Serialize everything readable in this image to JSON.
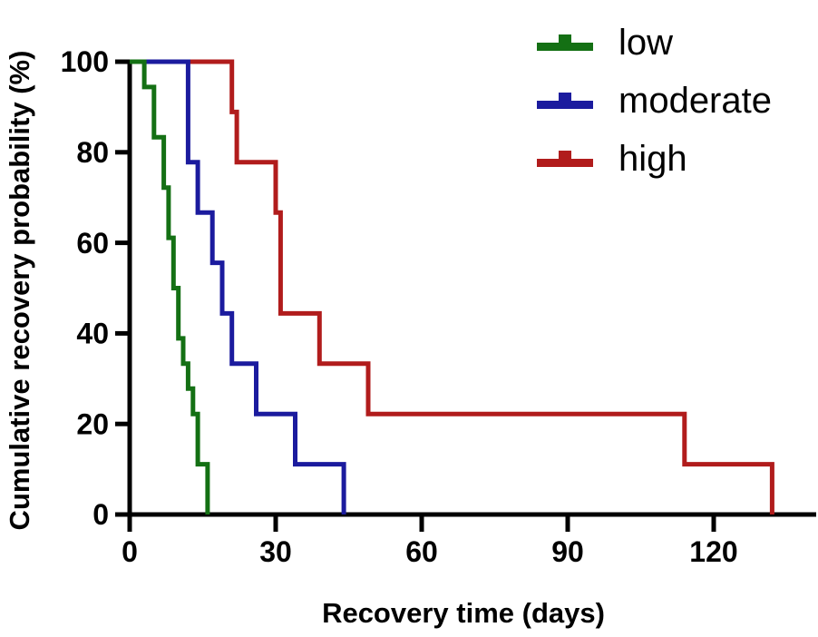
{
  "chart_data": {
    "type": "line",
    "subtype": "kaplan-meier-step",
    "title": "",
    "xlabel": "Recovery time (days)",
    "ylabel": "Cumulative recovery probability (%)",
    "xlim": [
      0,
      141
    ],
    "ylim": [
      0,
      100
    ],
    "x_ticks": [
      0,
      30,
      60,
      90,
      120
    ],
    "y_ticks": [
      0,
      20,
      40,
      60,
      80,
      100
    ],
    "grid": false,
    "legend_position": "top-right",
    "axis_color": "#000000",
    "background_color": "#ffffff",
    "series": [
      {
        "name": "low",
        "color": "#147014",
        "step_points": [
          [
            0,
            100
          ],
          [
            3,
            94.4
          ],
          [
            5,
            83.3
          ],
          [
            7,
            72.2
          ],
          [
            8,
            61.1
          ],
          [
            9,
            50.0
          ],
          [
            10,
            38.9
          ],
          [
            11,
            33.3
          ],
          [
            12,
            27.8
          ],
          [
            13,
            22.2
          ],
          [
            14,
            11.1
          ],
          [
            16,
            0
          ]
        ]
      },
      {
        "name": "moderate",
        "color": "#1b1b9e",
        "step_points": [
          [
            0,
            100
          ],
          [
            12,
            77.8
          ],
          [
            14,
            66.7
          ],
          [
            17,
            55.6
          ],
          [
            19,
            44.4
          ],
          [
            21,
            33.3
          ],
          [
            26,
            22.2
          ],
          [
            34,
            11.1
          ],
          [
            44,
            0
          ]
        ]
      },
      {
        "name": "high",
        "color": "#b11c1c",
        "step_points": [
          [
            0,
            100
          ],
          [
            21,
            88.9
          ],
          [
            22,
            77.8
          ],
          [
            30,
            66.7
          ],
          [
            31,
            44.4
          ],
          [
            39,
            33.3
          ],
          [
            49,
            22.2
          ],
          [
            114,
            11.1
          ],
          [
            132,
            0
          ]
        ]
      }
    ]
  }
}
